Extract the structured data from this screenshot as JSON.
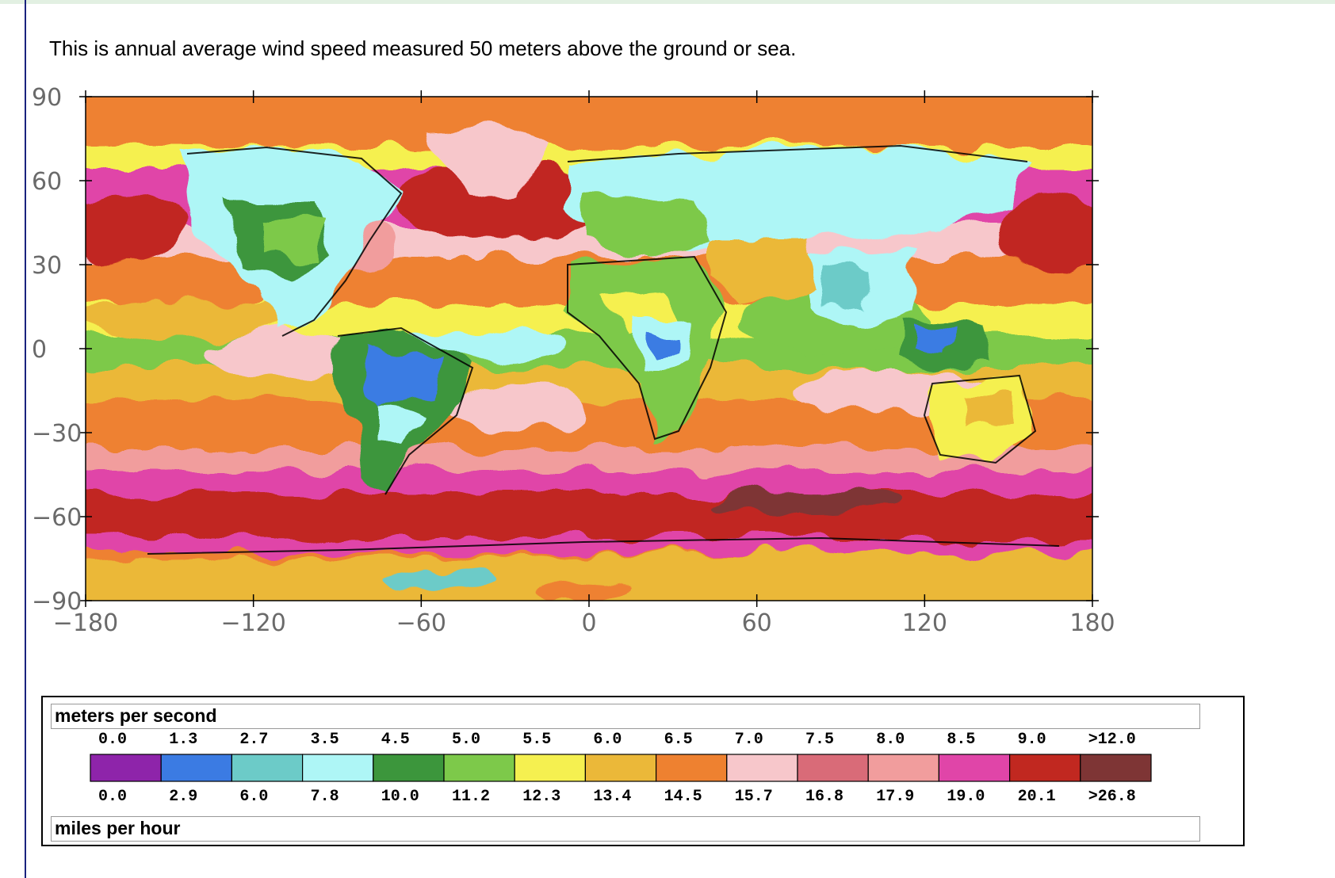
{
  "caption": "This is annual average wind speed measured 50 meters above the ground or sea.",
  "map": {
    "x_ticks": [
      "−180",
      "−120",
      "−60",
      "0",
      "60",
      "120",
      "180"
    ],
    "y_ticks": [
      "90",
      "60",
      "30",
      "0",
      "−30",
      "−60",
      "−90"
    ]
  },
  "legend": {
    "top_unit": "meters per second",
    "bottom_unit": "miles per hour",
    "mps": [
      "0.0",
      "1.3",
      "2.7",
      "3.5",
      "4.5",
      "5.0",
      "5.5",
      "6.0",
      "6.5",
      "7.0",
      "7.5",
      "8.0",
      "8.5",
      "9.0",
      ">12.0"
    ],
    "mph": [
      "0.0",
      "2.9",
      "6.0",
      "7.8",
      "10.0",
      "11.2",
      "12.3",
      "13.4",
      "14.5",
      "15.7",
      "16.8",
      "17.9",
      "19.0",
      "20.1",
      ">26.8"
    ],
    "colors": [
      "#8e24aa",
      "#3b7be3",
      "#6ccbc8",
      "#aef6f6",
      "#3c963c",
      "#7dc94a",
      "#f5f050",
      "#ebb839",
      "#ee8130",
      "#f7c7cb",
      "#d96b78",
      "#f19d9d",
      "#e045a8",
      "#c12820",
      "#7e3535"
    ]
  }
}
